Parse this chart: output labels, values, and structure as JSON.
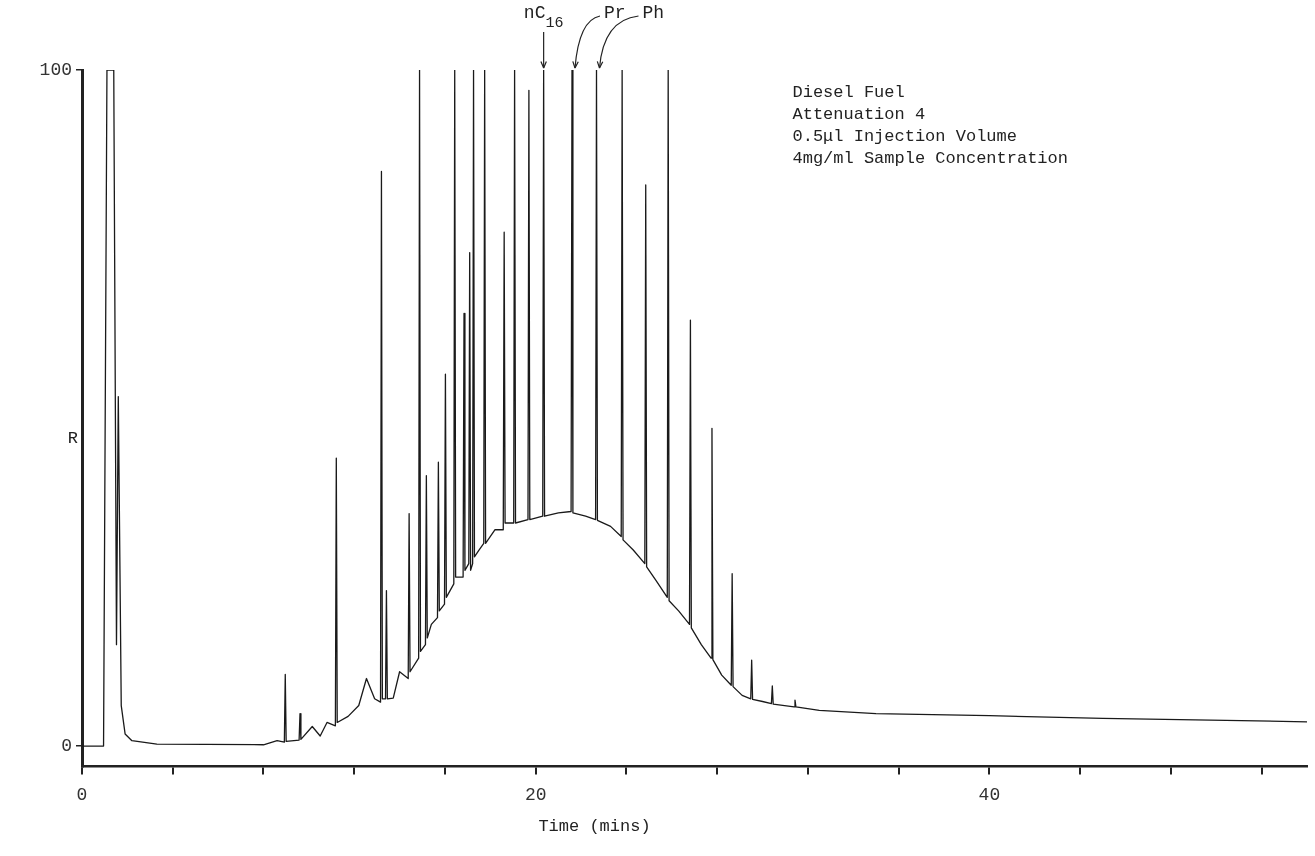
{
  "chart_data": {
    "type": "line",
    "xlabel": "Time (mins)",
    "ylabel": "R",
    "x": [
      0,
      0.95,
      1.1,
      1.4,
      1.52,
      1.6,
      1.73,
      1.9,
      2.2,
      3.3,
      8.0,
      8.6,
      8.92,
      8.96,
      9.0,
      9.57,
      9.61,
      9.65,
      10.15,
      10.5,
      10.8,
      11.17,
      11.21,
      11.25,
      11.73,
      12.2,
      12.54,
      12.9,
      13.16,
      13.2,
      13.24,
      13.38,
      13.42,
      13.46,
      13.72,
      14.0,
      14.38,
      14.42,
      14.46,
      14.84,
      14.88,
      14.92,
      15.14,
      15.18,
      15.22,
      15.4,
      15.67,
      15.71,
      15.75,
      15.98,
      16.02,
      16.06,
      16.39,
      16.43,
      16.47,
      16.8,
      16.84,
      16.88,
      17.05,
      17.09,
      17.13,
      17.22,
      17.26,
      17.3,
      17.5,
      17.71,
      17.75,
      17.79,
      18.2,
      18.57,
      18.61,
      18.65,
      19.03,
      19.07,
      19.11,
      19.66,
      19.7,
      19.74,
      20.31,
      20.35,
      20.39,
      21.0,
      21.56,
      21.6,
      21.64,
      22.2,
      22.64,
      22.68,
      22.72,
      23.3,
      23.77,
      23.81,
      23.85,
      24.3,
      24.81,
      24.85,
      24.89,
      25.3,
      25.8,
      25.84,
      25.88,
      26.3,
      26.78,
      26.82,
      26.86,
      27.3,
      27.73,
      27.77,
      27.81,
      28.2,
      28.62,
      28.66,
      28.7,
      29.1,
      29.48,
      29.52,
      29.56,
      30.0,
      30.39,
      30.43,
      30.47,
      31.39,
      31.43,
      31.47,
      32.5,
      35,
      40,
      45,
      54
    ],
    "series": [
      {
        "color": "#1a1a1a",
        "values": [
          0,
          0,
          100,
          100,
          15,
          51.7,
          6,
          1.8,
          0.8,
          0.3,
          0.2,
          0.8,
          0.6,
          10.6,
          0.7,
          0.9,
          4.8,
          1,
          2.9,
          1.5,
          3.5,
          3,
          42.6,
          3.5,
          4.4,
          6,
          10,
          7,
          6.5,
          85,
          7,
          7,
          23,
          7,
          7.1,
          11,
          10,
          34.4,
          11,
          13,
          100,
          14,
          15,
          40,
          16,
          18,
          19,
          42,
          20,
          21,
          55,
          22,
          24,
          100,
          25,
          25,
          64,
          26,
          27,
          73,
          26,
          27,
          100,
          28,
          29,
          30,
          100,
          30,
          32,
          32,
          76,
          33,
          33,
          100,
          33,
          33.5,
          97,
          33.5,
          34,
          100,
          34,
          34.5,
          34.7,
          100,
          34.5,
          34,
          33.5,
          100,
          33.4,
          32.5,
          31,
          100,
          30.5,
          29,
          27,
          83,
          26.5,
          24.5,
          22,
          100,
          21.5,
          20,
          18,
          63,
          17.5,
          15,
          13,
          47,
          12.8,
          10.5,
          9,
          25.5,
          8.8,
          7.5,
          7,
          12.7,
          6.9,
          6.6,
          6.3,
          8.9,
          6.2,
          5.8,
          6.8,
          5.8,
          5.3,
          4.8,
          4.5,
          4.1,
          3.6
        ]
      }
    ],
    "xlim": [
      0,
      54
    ],
    "xticks": [
      0,
      {
        "value": 4,
        "label": null
      },
      {
        "value": 8,
        "label": null
      },
      {
        "value": 12,
        "label": null
      },
      {
        "value": 16,
        "label": null
      },
      20,
      {
        "value": 24,
        "label": null
      },
      {
        "value": 28,
        "label": null
      },
      {
        "value": 32,
        "label": null
      },
      {
        "value": 36,
        "label": null
      },
      40,
      {
        "value": 44,
        "label": null
      },
      {
        "value": 48,
        "label": null
      },
      {
        "value": 52,
        "label": null
      }
    ],
    "ylim": [
      -3,
      100
    ],
    "yticks": [
      0,
      100
    ],
    "grid": false,
    "legend": false,
    "marker": "none",
    "line_style": "solid",
    "annotations": [
      {
        "text": "nC$_{16}$",
        "x": 20.35,
        "y": 100
      },
      {
        "text": "Pr",
        "x": 21.6,
        "y": 100
      },
      {
        "text": "Ph",
        "x": 22.68,
        "y": 100
      },
      "Diesel Fuel",
      "Attenuation 4",
      "0.5μl Injection Volume",
      "4mg/ml Sample Concentration"
    ]
  }
}
